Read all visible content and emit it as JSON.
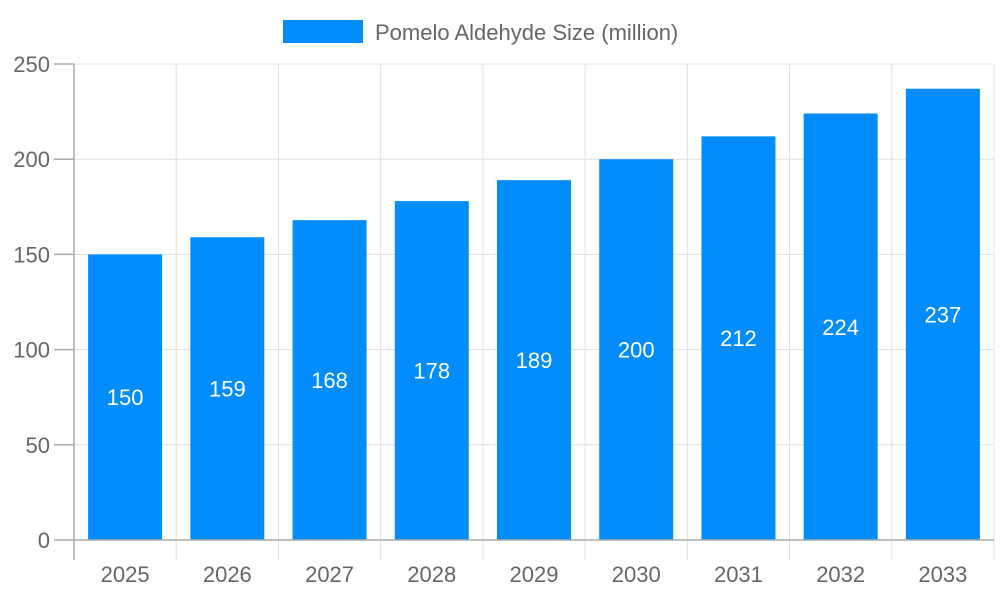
{
  "chart_data": {
    "type": "bar",
    "title": "",
    "xlabel": "",
    "ylabel": "",
    "categories": [
      "2025",
      "2026",
      "2027",
      "2028",
      "2029",
      "2030",
      "2031",
      "2032",
      "2033"
    ],
    "series": [
      {
        "name": "Pomelo Aldehyde Size (million)",
        "values": [
          150,
          159,
          168,
          178,
          189,
          200,
          212,
          224,
          237
        ],
        "color": "#038cfc"
      }
    ],
    "ylim": [
      0,
      250
    ],
    "yticks": [
      0,
      50,
      100,
      150,
      200,
      250
    ],
    "grid": true,
    "legend": "top-center",
    "data_labels": true
  }
}
